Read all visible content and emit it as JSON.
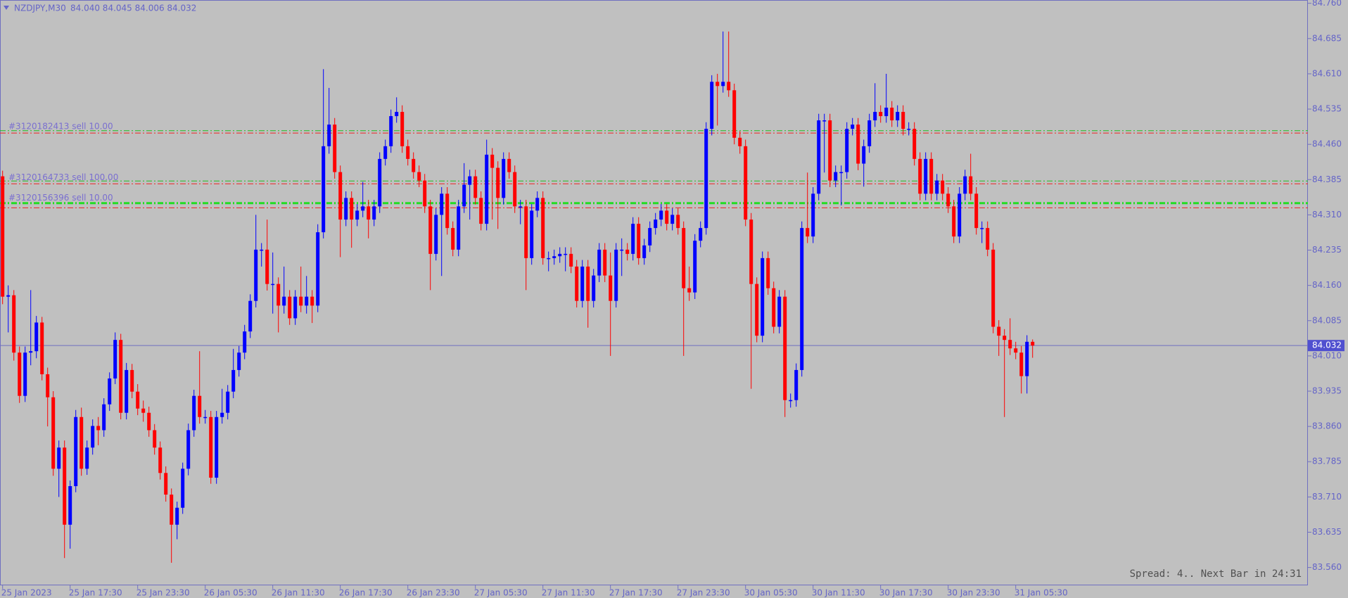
{
  "chart_data": {
    "type": "candlestick",
    "title": "NZDJPY,M30",
    "header": "84.040 84.045 84.006 84.032",
    "status": "Spread: 4.. Next Bar in 24:31",
    "up_color": "#0000ff",
    "down_color": "#ff0000",
    "ylim": [
      83.522,
      84.767
    ],
    "yticks": [
      {
        "value": 84.76,
        "label": "84.760"
      },
      {
        "value": 84.685,
        "label": "84.685"
      },
      {
        "value": 84.61,
        "label": "84.610"
      },
      {
        "value": 84.535,
        "label": "84.535"
      },
      {
        "value": 84.46,
        "label": "84.460"
      },
      {
        "value": 84.385,
        "label": "84.385"
      },
      {
        "value": 84.31,
        "label": "84.310"
      },
      {
        "value": 84.235,
        "label": "84.235"
      },
      {
        "value": 84.16,
        "label": "84.160"
      },
      {
        "value": 84.085,
        "label": "84.085"
      },
      {
        "value": 84.01,
        "label": "84.010"
      },
      {
        "value": 83.935,
        "label": "83.935"
      },
      {
        "value": 83.86,
        "label": "83.860"
      },
      {
        "value": 83.785,
        "label": "83.785"
      },
      {
        "value": 83.71,
        "label": "83.710"
      },
      {
        "value": 83.635,
        "label": "83.635"
      },
      {
        "value": 83.56,
        "label": "83.560"
      }
    ],
    "categories": [
      "25 Jan 2023",
      null,
      null,
      null,
      null,
      null,
      null,
      null,
      null,
      null,
      null,
      null,
      "25 Jan 17:30",
      null,
      null,
      null,
      null,
      null,
      null,
      null,
      null,
      null,
      null,
      null,
      "25 Jan 23:30",
      null,
      null,
      null,
      null,
      null,
      null,
      null,
      null,
      null,
      null,
      null,
      "26 Jan 05:30",
      null,
      null,
      null,
      null,
      null,
      null,
      null,
      null,
      null,
      null,
      null,
      "26 Jan 11:30",
      null,
      null,
      null,
      null,
      null,
      null,
      null,
      null,
      null,
      null,
      null,
      "26 Jan 17:30",
      null,
      null,
      null,
      null,
      null,
      null,
      null,
      null,
      null,
      null,
      null,
      "26 Jan 23:30",
      null,
      null,
      null,
      null,
      null,
      null,
      null,
      null,
      null,
      null,
      null,
      "27 Jan 05:30",
      null,
      null,
      null,
      null,
      null,
      null,
      null,
      null,
      null,
      null,
      null,
      "27 Jan 11:30",
      null,
      null,
      null,
      null,
      null,
      null,
      null,
      null,
      null,
      null,
      null,
      "27 Jan 17:30",
      null,
      null,
      null,
      null,
      null,
      null,
      null,
      null,
      null,
      null,
      null,
      "27 Jan 23:30",
      null,
      null,
      null,
      null,
      null,
      null,
      null,
      null,
      null,
      null,
      null,
      "30 Jan 05:30",
      null,
      null,
      null,
      null,
      null,
      null,
      null,
      null,
      null,
      null,
      null,
      "30 Jan 11:30",
      null,
      null,
      null,
      null,
      null,
      null,
      null,
      null,
      null,
      null,
      null,
      "30 Jan 17:30",
      null,
      null,
      null,
      null,
      null,
      null,
      null,
      null,
      null,
      null,
      null,
      "30 Jan 23:30",
      null,
      null,
      null,
      null,
      null,
      null,
      null,
      null,
      null,
      null,
      null,
      "31 Jan 05:30",
      null,
      null,
      null
    ],
    "open": [
      84.392,
      84.136,
      84.139,
      84.017,
      83.925,
      84.017,
      84.02,
      84.081,
      83.971,
      83.922,
      83.77,
      83.815,
      83.651,
      83.733,
      83.88,
      83.77,
      83.815,
      83.861,
      83.852,
      83.907,
      83.962,
      84.044,
      83.889,
      83.98,
      83.934,
      83.898,
      83.889,
      83.852,
      83.815,
      83.761,
      83.715,
      83.651,
      83.687,
      83.77,
      83.852,
      83.925,
      83.88,
      83.88,
      83.751,
      83.88,
      83.889,
      83.934,
      83.98,
      84.017,
      84.062,
      84.127,
      84.236,
      84.236,
      84.163,
      84.163,
      84.117,
      84.136,
      84.09,
      84.136,
      84.117,
      84.136,
      84.117,
      84.273,
      84.456,
      84.502,
      84.401,
      84.3,
      84.346,
      84.3,
      84.319,
      84.328,
      84.3,
      84.328,
      84.429,
      84.456,
      84.52,
      84.529,
      84.456,
      84.429,
      84.401,
      84.383,
      84.328,
      84.227,
      84.31,
      84.355,
      84.282,
      84.236,
      84.328,
      84.374,
      84.392,
      84.346,
      84.291,
      84.438,
      84.41,
      84.346,
      84.429,
      84.401,
      84.328,
      84.328,
      84.218,
      84.319,
      84.346,
      84.218,
      84.218,
      84.222,
      84.227,
      84.227,
      84.2,
      84.127,
      84.2,
      84.127,
      84.181,
      84.236,
      84.181,
      84.127,
      84.236,
      84.236,
      84.227,
      84.291,
      84.218,
      84.245,
      84.282,
      84.3,
      84.319,
      84.291,
      84.31,
      84.282,
      84.154,
      84.145,
      84.255,
      84.282,
      84.493,
      84.593,
      84.584,
      84.593,
      84.575,
      84.474,
      84.456,
      84.3,
      84.163,
      84.053,
      84.218,
      84.154,
      84.072,
      84.136,
      83.916,
      83.916,
      83.98,
      84.282,
      84.264,
      84.355,
      84.511,
      84.511,
      84.383,
      84.401,
      84.401,
      84.493,
      84.502,
      84.419,
      84.456,
      84.511,
      84.529,
      84.52,
      84.538,
      84.511,
      84.529,
      84.493,
      84.493,
      84.429,
      84.355,
      84.429,
      84.355,
      84.383,
      84.355,
      84.328,
      84.264,
      84.355,
      84.392,
      84.355,
      84.282,
      84.282,
      84.236,
      84.072,
      84.053,
      84.044,
      84.026,
      84.017,
      83.967,
      84.04
    ],
    "high": [
      84.404,
      84.16,
      84.15,
      84.03,
      84.03,
      84.15,
      84.095,
      84.093,
      83.985,
      83.935,
      83.83,
      83.83,
      83.745,
      83.895,
      83.9,
      83.83,
      83.875,
      83.88,
      83.92,
      83.975,
      84.06,
      84.057,
      83.995,
      83.993,
      83.95,
      83.915,
      83.902,
      83.865,
      83.828,
      83.775,
      83.728,
      83.7,
      83.783,
      83.866,
      83.938,
      84.02,
      83.895,
      83.893,
      83.893,
      83.94,
      83.948,
      84.025,
      84.031,
      84.076,
      84.141,
      84.31,
      84.25,
      84.3,
      84.23,
      84.177,
      84.2,
      84.15,
      84.15,
      84.2,
      84.18,
      84.15,
      84.29,
      84.62,
      84.58,
      84.516,
      84.415,
      84.36,
      84.36,
      84.333,
      84.38,
      84.342,
      84.342,
      84.443,
      84.47,
      84.534,
      84.56,
      84.543,
      84.47,
      84.443,
      84.415,
      84.397,
      84.342,
      84.324,
      84.369,
      84.369,
      84.296,
      84.342,
      84.42,
      84.406,
      84.406,
      84.36,
      84.47,
      84.452,
      84.424,
      84.443,
      84.443,
      84.415,
      84.342,
      84.342,
      84.333,
      84.36,
      84.36,
      84.232,
      84.236,
      84.241,
      84.241,
      84.241,
      84.214,
      84.214,
      84.214,
      84.195,
      84.25,
      84.25,
      84.23,
      84.25,
      84.26,
      84.25,
      84.305,
      84.305,
      84.259,
      84.296,
      84.314,
      84.333,
      84.333,
      84.324,
      84.324,
      84.296,
      84.2,
      84.269,
      84.296,
      84.507,
      84.607,
      84.61,
      84.7,
      84.7,
      84.589,
      84.488,
      84.47,
      84.314,
      84.177,
      84.232,
      84.232,
      84.168,
      84.15,
      84.15,
      83.93,
      83.994,
      84.296,
      84.4,
      84.369,
      84.525,
      84.525,
      84.525,
      84.415,
      84.415,
      84.507,
      84.516,
      84.516,
      84.47,
      84.525,
      84.59,
      84.543,
      84.61,
      84.552,
      84.543,
      84.543,
      84.507,
      84.507,
      84.443,
      84.443,
      84.443,
      84.397,
      84.397,
      84.369,
      84.342,
      84.369,
      84.406,
      84.44,
      84.369,
      84.296,
      84.296,
      84.25,
      84.086,
      84.067,
      84.09,
      84.04,
      84.031,
      84.054,
      84.045
    ],
    "low": [
      84.12,
      84.06,
      84.0,
      83.91,
      83.912,
      83.99,
      84.005,
      83.958,
      83.86,
      83.755,
      83.71,
      83.58,
      83.6,
      83.72,
      83.755,
      83.757,
      83.8,
      83.82,
      83.838,
      83.893,
      83.95,
      83.875,
      83.875,
      83.92,
      83.884,
      83.87,
      83.838,
      83.8,
      83.747,
      83.7,
      83.57,
      83.62,
      83.674,
      83.756,
      83.838,
      83.866,
      83.866,
      83.738,
      83.738,
      83.866,
      83.875,
      83.92,
      83.966,
      84.003,
      84.048,
      84.113,
      84.2,
      84.149,
      84.1,
      84.06,
      84.1,
      84.076,
      84.076,
      84.103,
      84.1,
      84.08,
      84.103,
      84.26,
      84.44,
      84.387,
      84.22,
      84.286,
      84.24,
      84.286,
      84.305,
      84.26,
      84.286,
      84.314,
      84.415,
      84.442,
      84.506,
      84.442,
      84.415,
      84.387,
      84.369,
      84.314,
      84.15,
      84.213,
      84.18,
      84.268,
      84.222,
      84.222,
      84.314,
      84.3,
      84.332,
      84.277,
      84.277,
      84.3,
      84.28,
      84.332,
      84.387,
      84.314,
      84.29,
      84.15,
      84.204,
      84.305,
      84.204,
      84.19,
      84.204,
      84.208,
      84.19,
      84.186,
      84.113,
      84.113,
      84.07,
      84.113,
      84.167,
      84.167,
      84.01,
      84.113,
      84.18,
      84.213,
      84.213,
      84.204,
      84.204,
      84.231,
      84.268,
      84.286,
      84.277,
      84.277,
      84.268,
      84.01,
      84.127,
      84.131,
      84.241,
      84.268,
      84.479,
      84.5,
      84.57,
      84.561,
      84.46,
      84.44,
      84.286,
      83.94,
      84.039,
      84.039,
      84.14,
      84.058,
      84.058,
      83.88,
      83.9,
      83.902,
      83.966,
      84.25,
      84.25,
      84.341,
      84.4,
      84.369,
      84.369,
      84.33,
      84.387,
      84.479,
      84.405,
      84.37,
      84.442,
      84.497,
      84.506,
      84.506,
      84.497,
      84.497,
      84.479,
      84.479,
      84.415,
      84.341,
      84.341,
      84.341,
      84.341,
      84.341,
      84.314,
      84.25,
      84.25,
      84.341,
      84.341,
      84.268,
      84.25,
      84.222,
      84.058,
      84.01,
      83.88,
      84.012,
      84.003,
      83.93,
      83.93,
      84.006
    ],
    "close": [
      84.136,
      84.139,
      84.017,
      83.925,
      84.017,
      84.02,
      84.081,
      83.971,
      83.922,
      83.77,
      83.815,
      83.651,
      83.733,
      83.88,
      83.77,
      83.815,
      83.861,
      83.852,
      83.907,
      83.962,
      84.044,
      83.889,
      83.98,
      83.934,
      83.898,
      83.889,
      83.852,
      83.815,
      83.761,
      83.715,
      83.651,
      83.687,
      83.77,
      83.852,
      83.925,
      83.88,
      83.88,
      83.751,
      83.88,
      83.889,
      83.934,
      83.98,
      84.017,
      84.062,
      84.127,
      84.236,
      84.236,
      84.163,
      84.163,
      84.117,
      84.136,
      84.09,
      84.136,
      84.117,
      84.136,
      84.117,
      84.273,
      84.456,
      84.502,
      84.401,
      84.3,
      84.346,
      84.3,
      84.319,
      84.328,
      84.3,
      84.328,
      84.429,
      84.456,
      84.52,
      84.529,
      84.456,
      84.429,
      84.401,
      84.383,
      84.328,
      84.227,
      84.31,
      84.355,
      84.282,
      84.236,
      84.328,
      84.374,
      84.392,
      84.346,
      84.291,
      84.438,
      84.41,
      84.346,
      84.429,
      84.401,
      84.328,
      84.328,
      84.218,
      84.319,
      84.346,
      84.218,
      84.218,
      84.222,
      84.227,
      84.227,
      84.2,
      84.127,
      84.2,
      84.127,
      84.181,
      84.236,
      84.181,
      84.127,
      84.236,
      84.236,
      84.227,
      84.291,
      84.218,
      84.245,
      84.282,
      84.3,
      84.319,
      84.291,
      84.31,
      84.282,
      84.154,
      84.145,
      84.255,
      84.282,
      84.493,
      84.593,
      84.584,
      84.593,
      84.575,
      84.474,
      84.456,
      84.3,
      84.163,
      84.053,
      84.218,
      84.154,
      84.072,
      84.136,
      83.916,
      83.916,
      83.98,
      84.282,
      84.264,
      84.355,
      84.511,
      84.511,
      84.383,
      84.401,
      84.401,
      84.493,
      84.502,
      84.419,
      84.456,
      84.511,
      84.529,
      84.52,
      84.538,
      84.511,
      84.529,
      84.493,
      84.493,
      84.429,
      84.355,
      84.429,
      84.355,
      84.383,
      84.355,
      84.328,
      84.264,
      84.355,
      84.392,
      84.355,
      84.282,
      84.282,
      84.236,
      84.072,
      84.053,
      84.044,
      84.026,
      84.017,
      83.967,
      84.04,
      84.032
    ],
    "orders": [
      {
        "label": "#3120182413 sell 10.00",
        "price": 84.487
      },
      {
        "label": "#3120164733 sell 100.00",
        "price": 84.379
      },
      {
        "label": "#3120156396 sell 10.00",
        "price": 84.335
      }
    ],
    "levels": [
      {
        "price": 84.489,
        "color": "#22bb22",
        "width": 1
      },
      {
        "price": 84.484,
        "color": "#ee2222",
        "width": 1
      },
      {
        "price": 84.382,
        "color": "#22bb22",
        "width": 1
      },
      {
        "price": 84.376,
        "color": "#ee2222",
        "width": 1
      },
      {
        "price": 84.335,
        "color": "#22dd22",
        "width": 3
      },
      {
        "price": 84.325,
        "color": "#ee2222",
        "width": 1
      }
    ],
    "bid": {
      "value": 84.032,
      "label": "84.032"
    }
  }
}
